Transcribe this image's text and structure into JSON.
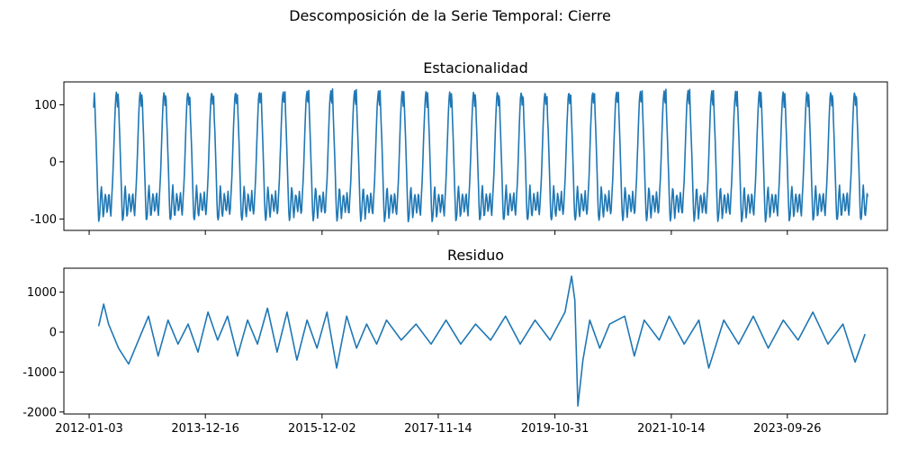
{
  "figure": {
    "suptitle": "Descomposición de la Serie Temporal: Cierre",
    "line_color": "#1f77b4"
  },
  "chart_data": [
    {
      "type": "line",
      "title": "Estacionalidad",
      "xlabel": "",
      "ylabel": "",
      "x_range": [
        "2011-08-01",
        "2025-06-01"
      ],
      "ylim": [
        -120,
        140
      ],
      "yticks": [
        -100,
        0,
        100
      ],
      "grid": false,
      "series": [
        {
          "period_years": 0.4,
          "cycle_start": "2012-01-31",
          "date_range": [
            "2012-01-31",
            "2025-01-31"
          ],
          "seasonal_cycle": [
            {
              "phase": 0.0,
              "value": 95
            },
            {
              "phase": 0.03,
              "value": 128
            },
            {
              "phase": 0.06,
              "value": 80
            },
            {
              "phase": 0.09,
              "value": 50
            },
            {
              "phase": 0.12,
              "value": 10
            },
            {
              "phase": 0.15,
              "value": -30
            },
            {
              "phase": 0.18,
              "value": -75
            },
            {
              "phase": 0.21,
              "value": -105
            },
            {
              "phase": 0.25,
              "value": -95
            },
            {
              "phase": 0.29,
              "value": -60
            },
            {
              "phase": 0.32,
              "value": -40
            },
            {
              "phase": 0.36,
              "value": -70
            },
            {
              "phase": 0.4,
              "value": -100
            },
            {
              "phase": 0.44,
              "value": -80
            },
            {
              "phase": 0.48,
              "value": -55
            },
            {
              "phase": 0.52,
              "value": -65
            },
            {
              "phase": 0.56,
              "value": -90
            },
            {
              "phase": 0.6,
              "value": -75
            },
            {
              "phase": 0.64,
              "value": -50
            },
            {
              "phase": 0.68,
              "value": -80
            },
            {
              "phase": 0.72,
              "value": -95
            },
            {
              "phase": 0.76,
              "value": -60
            },
            {
              "phase": 0.8,
              "value": -30
            },
            {
              "phase": 0.84,
              "value": 20
            },
            {
              "phase": 0.88,
              "value": 70
            },
            {
              "phase": 0.92,
              "value": 110
            },
            {
              "phase": 0.96,
              "value": 125
            },
            {
              "phase": 1.0,
              "value": 95
            }
          ]
        }
      ]
    },
    {
      "type": "line",
      "title": "Residuo",
      "xlabel": "",
      "ylabel": "",
      "x_range": [
        "2011-08-01",
        "2025-06-01"
      ],
      "ylim": [
        -2050,
        1600
      ],
      "yticks": [
        -2000,
        -1000,
        0,
        1000
      ],
      "grid": false,
      "series": [
        {
          "points": [
            {
              "x": "2012-03-01",
              "y": 150
            },
            {
              "x": "2012-04-01",
              "y": 700
            },
            {
              "x": "2012-05-01",
              "y": 200
            },
            {
              "x": "2012-07-01",
              "y": -400
            },
            {
              "x": "2012-09-01",
              "y": -800
            },
            {
              "x": "2012-11-01",
              "y": -200
            },
            {
              "x": "2013-01-01",
              "y": 400
            },
            {
              "x": "2013-03-01",
              "y": -600
            },
            {
              "x": "2013-05-01",
              "y": 300
            },
            {
              "x": "2013-07-01",
              "y": -300
            },
            {
              "x": "2013-09-01",
              "y": 200
            },
            {
              "x": "2013-11-01",
              "y": -500
            },
            {
              "x": "2014-01-01",
              "y": 500
            },
            {
              "x": "2014-03-01",
              "y": -200
            },
            {
              "x": "2014-05-01",
              "y": 400
            },
            {
              "x": "2014-07-01",
              "y": -600
            },
            {
              "x": "2014-09-01",
              "y": 300
            },
            {
              "x": "2014-11-01",
              "y": -300
            },
            {
              "x": "2015-01-01",
              "y": 600
            },
            {
              "x": "2015-03-01",
              "y": -500
            },
            {
              "x": "2015-05-01",
              "y": 500
            },
            {
              "x": "2015-07-01",
              "y": -700
            },
            {
              "x": "2015-09-01",
              "y": 300
            },
            {
              "x": "2015-11-01",
              "y": -400
            },
            {
              "x": "2016-01-01",
              "y": 500
            },
            {
              "x": "2016-03-01",
              "y": -900
            },
            {
              "x": "2016-05-01",
              "y": 400
            },
            {
              "x": "2016-07-01",
              "y": -400
            },
            {
              "x": "2016-09-01",
              "y": 200
            },
            {
              "x": "2016-11-01",
              "y": -300
            },
            {
              "x": "2017-01-01",
              "y": 300
            },
            {
              "x": "2017-04-01",
              "y": -200
            },
            {
              "x": "2017-07-01",
              "y": 200
            },
            {
              "x": "2017-10-01",
              "y": -300
            },
            {
              "x": "2018-01-01",
              "y": 300
            },
            {
              "x": "2018-04-01",
              "y": -300
            },
            {
              "x": "2018-07-01",
              "y": 200
            },
            {
              "x": "2018-10-01",
              "y": -200
            },
            {
              "x": "2019-01-01",
              "y": 400
            },
            {
              "x": "2019-04-01",
              "y": -300
            },
            {
              "x": "2019-07-01",
              "y": 300
            },
            {
              "x": "2019-10-01",
              "y": -200
            },
            {
              "x": "2020-01-01",
              "y": 500
            },
            {
              "x": "2020-02-10",
              "y": 1400
            },
            {
              "x": "2020-03-01",
              "y": 800
            },
            {
              "x": "2020-03-20",
              "y": -1850
            },
            {
              "x": "2020-04-20",
              "y": -700
            },
            {
              "x": "2020-06-01",
              "y": 300
            },
            {
              "x": "2020-08-01",
              "y": -400
            },
            {
              "x": "2020-10-01",
              "y": 200
            },
            {
              "x": "2021-01-01",
              "y": 400
            },
            {
              "x": "2021-03-01",
              "y": -600
            },
            {
              "x": "2021-05-01",
              "y": 300
            },
            {
              "x": "2021-08-01",
              "y": -200
            },
            {
              "x": "2021-10-01",
              "y": 400
            },
            {
              "x": "2022-01-01",
              "y": -300
            },
            {
              "x": "2022-04-01",
              "y": 300
            },
            {
              "x": "2022-06-01",
              "y": -900
            },
            {
              "x": "2022-09-01",
              "y": 300
            },
            {
              "x": "2022-12-01",
              "y": -300
            },
            {
              "x": "2023-03-01",
              "y": 400
            },
            {
              "x": "2023-06-01",
              "y": -400
            },
            {
              "x": "2023-09-01",
              "y": 300
            },
            {
              "x": "2023-12-01",
              "y": -200
            },
            {
              "x": "2024-03-01",
              "y": 500
            },
            {
              "x": "2024-06-01",
              "y": -300
            },
            {
              "x": "2024-09-01",
              "y": 200
            },
            {
              "x": "2024-11-15",
              "y": -750
            },
            {
              "x": "2025-01-15",
              "y": -50
            }
          ]
        }
      ]
    }
  ],
  "x_ticks": [
    "2012-01-03",
    "2013-12-16",
    "2015-12-02",
    "2017-11-14",
    "2019-10-31",
    "2021-10-14",
    "2023-09-26"
  ]
}
